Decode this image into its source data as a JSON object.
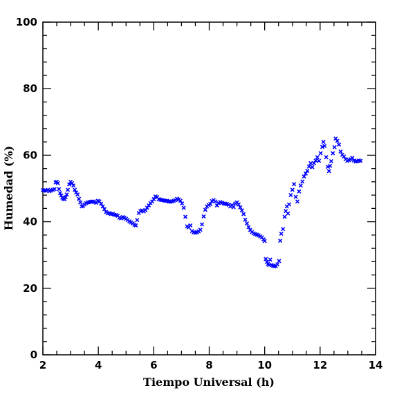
{
  "chart_data": {
    "type": "scatter",
    "xlabel": "Tiempo Universal (h)",
    "ylabel": "Humedad (%)",
    "xlim": [
      2,
      14
    ],
    "ylim": [
      0,
      100
    ],
    "x_ticks": [
      2,
      4,
      6,
      8,
      10,
      12,
      14
    ],
    "y_ticks": [
      0,
      20,
      40,
      60,
      80,
      100
    ],
    "marker": "x",
    "marker_color": "#0000ff",
    "grid": false,
    "series": [
      {
        "values": [
          [
            2.0,
            49.5
          ],
          [
            2.06,
            49.4
          ],
          [
            2.12,
            49.3
          ],
          [
            2.18,
            49.6
          ],
          [
            2.24,
            49.2
          ],
          [
            2.3,
            49.4
          ],
          [
            2.36,
            49.6
          ],
          [
            2.42,
            49.8
          ],
          [
            2.46,
            51.8
          ],
          [
            2.5,
            52.0
          ],
          [
            2.54,
            51.6
          ],
          [
            2.58,
            49.8
          ],
          [
            2.62,
            48.6
          ],
          [
            2.66,
            47.9
          ],
          [
            2.7,
            47.2
          ],
          [
            2.74,
            46.9
          ],
          [
            2.78,
            46.8
          ],
          [
            2.82,
            47.4
          ],
          [
            2.86,
            48.2
          ],
          [
            2.9,
            49.6
          ],
          [
            2.95,
            51.2
          ],
          [
            3.0,
            52.0
          ],
          [
            3.05,
            51.6
          ],
          [
            3.1,
            50.9
          ],
          [
            3.15,
            49.6
          ],
          [
            3.2,
            48.8
          ],
          [
            3.25,
            48.2
          ],
          [
            3.3,
            46.9
          ],
          [
            3.35,
            45.8
          ],
          [
            3.4,
            44.6
          ],
          [
            3.45,
            44.8
          ],
          [
            3.5,
            45.2
          ],
          [
            3.56,
            45.6
          ],
          [
            3.62,
            45.8
          ],
          [
            3.68,
            45.9
          ],
          [
            3.74,
            46.0
          ],
          [
            3.8,
            46.1
          ],
          [
            3.86,
            45.9
          ],
          [
            3.92,
            45.7
          ],
          [
            3.98,
            46.3
          ],
          [
            4.04,
            46.1
          ],
          [
            4.1,
            45.4
          ],
          [
            4.16,
            44.6
          ],
          [
            4.22,
            43.8
          ],
          [
            4.28,
            42.9
          ],
          [
            4.34,
            42.5
          ],
          [
            4.4,
            42.6
          ],
          [
            4.46,
            42.3
          ],
          [
            4.52,
            42.4
          ],
          [
            4.58,
            42.1
          ],
          [
            4.64,
            42.0
          ],
          [
            4.7,
            41.8
          ],
          [
            4.76,
            41.2
          ],
          [
            4.82,
            41.0
          ],
          [
            4.88,
            41.4
          ],
          [
            4.94,
            41.2
          ],
          [
            5.0,
            40.9
          ],
          [
            5.06,
            40.5
          ],
          [
            5.12,
            40.1
          ],
          [
            5.18,
            39.8
          ],
          [
            5.24,
            39.5
          ],
          [
            5.3,
            39.1
          ],
          [
            5.35,
            38.9
          ],
          [
            5.4,
            40.5
          ],
          [
            5.46,
            42.6
          ],
          [
            5.52,
            43.2
          ],
          [
            5.58,
            43.4
          ],
          [
            5.64,
            43.1
          ],
          [
            5.7,
            43.5
          ],
          [
            5.76,
            44.2
          ],
          [
            5.82,
            44.9
          ],
          [
            5.88,
            45.6
          ],
          [
            5.94,
            46.1
          ],
          [
            6.0,
            46.8
          ],
          [
            6.06,
            47.6
          ],
          [
            6.12,
            47.4
          ],
          [
            6.18,
            46.8
          ],
          [
            6.24,
            46.6
          ],
          [
            6.3,
            46.5
          ],
          [
            6.36,
            46.4
          ],
          [
            6.42,
            46.3
          ],
          [
            6.48,
            46.3
          ],
          [
            6.54,
            46.1
          ],
          [
            6.6,
            46.0
          ],
          [
            6.66,
            46.1
          ],
          [
            6.72,
            46.3
          ],
          [
            6.78,
            46.5
          ],
          [
            6.84,
            46.9
          ],
          [
            6.9,
            46.7
          ],
          [
            6.96,
            46.3
          ],
          [
            7.02,
            45.5
          ],
          [
            7.08,
            44.2
          ],
          [
            7.14,
            41.5
          ],
          [
            7.2,
            38.6
          ],
          [
            7.26,
            38.3
          ],
          [
            7.32,
            38.9
          ],
          [
            7.38,
            37.2
          ],
          [
            7.44,
            36.8
          ],
          [
            7.5,
            36.7
          ],
          [
            7.56,
            36.8
          ],
          [
            7.62,
            37.1
          ],
          [
            7.68,
            37.6
          ],
          [
            7.74,
            39.2
          ],
          [
            7.8,
            41.6
          ],
          [
            7.86,
            43.6
          ],
          [
            7.92,
            44.6
          ],
          [
            7.98,
            45.0
          ],
          [
            8.04,
            45.3
          ],
          [
            8.1,
            46.2
          ],
          [
            8.16,
            46.5
          ],
          [
            8.22,
            46.1
          ],
          [
            8.28,
            44.9
          ],
          [
            8.34,
            45.6
          ],
          [
            8.4,
            45.9
          ],
          [
            8.46,
            45.7
          ],
          [
            8.52,
            45.5
          ],
          [
            8.58,
            45.4
          ],
          [
            8.64,
            45.3
          ],
          [
            8.7,
            45.1
          ],
          [
            8.76,
            44.6
          ],
          [
            8.82,
            45.0
          ],
          [
            8.88,
            44.4
          ],
          [
            8.94,
            45.5
          ],
          [
            9.0,
            45.8
          ],
          [
            9.06,
            45.2
          ],
          [
            9.12,
            44.3
          ],
          [
            9.18,
            43.4
          ],
          [
            9.24,
            42.3
          ],
          [
            9.3,
            40.6
          ],
          [
            9.36,
            39.5
          ],
          [
            9.42,
            38.4
          ],
          [
            9.48,
            37.5
          ],
          [
            9.54,
            36.9
          ],
          [
            9.6,
            36.5
          ],
          [
            9.66,
            36.3
          ],
          [
            9.72,
            36.1
          ],
          [
            9.78,
            35.9
          ],
          [
            9.84,
            35.6
          ],
          [
            9.9,
            35.3
          ],
          [
            9.96,
            34.7
          ],
          [
            10.0,
            34.2
          ],
          [
            10.04,
            28.8
          ],
          [
            10.08,
            27.9
          ],
          [
            10.12,
            27.3
          ],
          [
            10.16,
            27.0
          ],
          [
            10.2,
            28.6
          ],
          [
            10.25,
            27.0
          ],
          [
            10.3,
            26.8
          ],
          [
            10.35,
            26.6
          ],
          [
            10.4,
            26.7
          ],
          [
            10.46,
            27.2
          ],
          [
            10.52,
            28.2
          ],
          [
            10.56,
            34.3
          ],
          [
            10.6,
            36.4
          ],
          [
            10.66,
            37.8
          ],
          [
            10.72,
            41.5
          ],
          [
            10.76,
            43.2
          ],
          [
            10.8,
            44.6
          ],
          [
            10.84,
            42.5
          ],
          [
            10.88,
            45.2
          ],
          [
            10.94,
            48.0
          ],
          [
            11.0,
            49.6
          ],
          [
            11.06,
            51.3
          ],
          [
            11.12,
            47.5
          ],
          [
            11.18,
            46.1
          ],
          [
            11.24,
            49.1
          ],
          [
            11.3,
            50.9
          ],
          [
            11.36,
            52.1
          ],
          [
            11.42,
            53.6
          ],
          [
            11.48,
            54.5
          ],
          [
            11.54,
            55.3
          ],
          [
            11.6,
            56.6
          ],
          [
            11.66,
            57.6
          ],
          [
            11.72,
            56.4
          ],
          [
            11.78,
            57.6
          ],
          [
            11.84,
            58.4
          ],
          [
            11.9,
            59.4
          ],
          [
            11.96,
            58.3
          ],
          [
            12.02,
            60.6
          ],
          [
            12.08,
            62.5
          ],
          [
            12.12,
            64.0
          ],
          [
            12.16,
            62.8
          ],
          [
            12.22,
            59.4
          ],
          [
            12.28,
            56.5
          ],
          [
            12.32,
            55.2
          ],
          [
            12.36,
            56.8
          ],
          [
            12.4,
            58.2
          ],
          [
            12.46,
            60.6
          ],
          [
            12.52,
            62.4
          ],
          [
            12.56,
            65.0
          ],
          [
            12.62,
            64.3
          ],
          [
            12.68,
            63.2
          ],
          [
            12.74,
            61.1
          ],
          [
            12.8,
            60.1
          ],
          [
            12.86,
            59.6
          ],
          [
            12.92,
            58.8
          ],
          [
            12.98,
            58.3
          ],
          [
            13.04,
            58.5
          ],
          [
            13.1,
            58.8
          ],
          [
            13.16,
            59.2
          ],
          [
            13.22,
            58.4
          ],
          [
            13.28,
            58.1
          ],
          [
            13.34,
            58.2
          ],
          [
            13.4,
            58.4
          ],
          [
            13.46,
            58.3
          ]
        ]
      }
    ]
  }
}
